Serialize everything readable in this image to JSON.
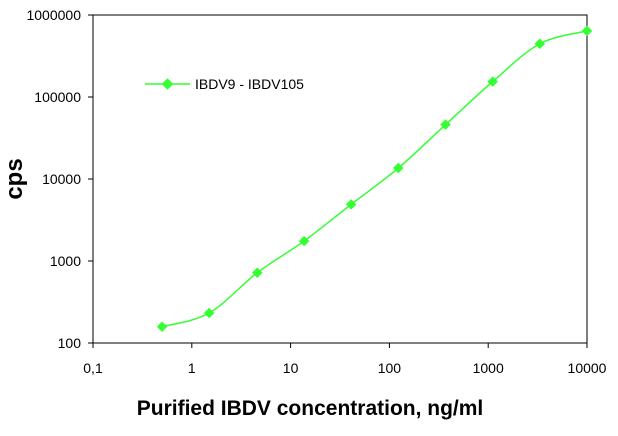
{
  "chart_data": {
    "type": "line",
    "xscale": "log",
    "yscale": "log",
    "xlabel": "Purified IBDV concentration, ng/ml",
    "ylabel": "cps",
    "xlim": [
      0.1,
      10000
    ],
    "ylim": [
      100,
      1000000
    ],
    "x_tick_labels": [
      "0,1",
      "1",
      "10",
      "100",
      "1000",
      "10000"
    ],
    "y_tick_labels": [
      "100",
      "1000",
      "10000",
      "100000",
      "1000000"
    ],
    "grid": false,
    "legend_position": "top-left",
    "series": [
      {
        "name": "IBDV9 - IBDV105",
        "color": "#33ff33",
        "marker": "diamond",
        "smooth": true,
        "x": [
          0.5,
          1.5,
          4.6,
          13.7,
          41,
          123,
          370,
          1110,
          3330,
          10000
        ],
        "y": [
          158,
          232,
          720,
          1750,
          4900,
          13600,
          46000,
          154000,
          446000,
          640000
        ]
      }
    ]
  }
}
